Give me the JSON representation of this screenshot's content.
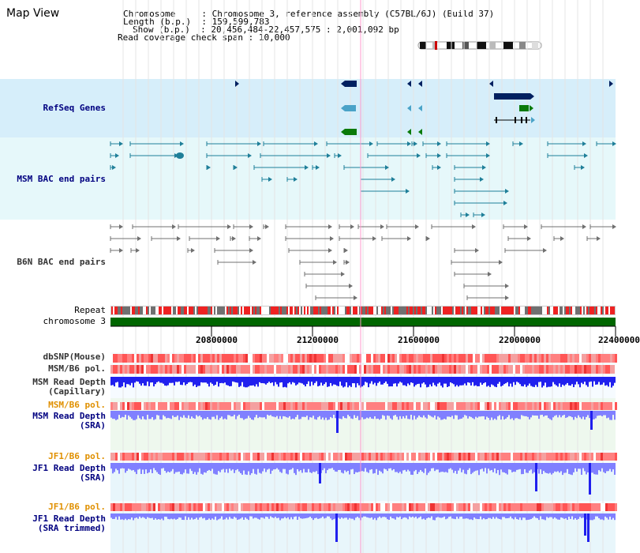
{
  "page": {
    "title": "Map View"
  },
  "info": {
    "chromosome_key": "Chromosome",
    "chromosome_val": "Chromosome 3, reference assembly (C57BL/6J) (Build 37)",
    "length_key": "Length (b.p.)",
    "length_val": "159,599,783",
    "show_key": "Show (b.p.)",
    "show_val": "20,456,484-22,457,575 : 2,001,092 bp",
    "coverage_key": "Read coverage check span",
    "coverage_val": "10,000"
  },
  "tracks": {
    "refseq": "RefSeq Genes",
    "msm_bac": "MSM BAC end pairs",
    "b6n_bac": "B6N BAC end pairs",
    "repeat": "Repeat",
    "chromosome": "chromosome 3",
    "dbsnp": "dbSNP(Mouse)",
    "msm_pol": "MSM/B6 pol.",
    "msm_depth_cap_1": "MSM Read Depth",
    "msm_depth_cap_2": "(Capillary)",
    "msm_pol_2": "MSM/B6 pol.",
    "msm_depth_sra_1": "MSM Read Depth",
    "msm_depth_sra_2": "(SRA)",
    "jf1_pol_1": "JF1/B6 pol.",
    "jf1_depth_sra_1": "JF1 Read Depth",
    "jf1_depth_sra_2": "(SRA)",
    "jf1_pol_2": "JF1/B6 pol.",
    "jf1_depth_trim_1": "JF1 Read Depth",
    "jf1_depth_trim_2": "(SRA trimmed)"
  },
  "axis": {
    "ticks": [
      "20800000",
      "21200000",
      "21600000",
      "22000000",
      "22400000"
    ]
  },
  "colors": {
    "refseq_bg": "#d6eefa",
    "msm_bac_bg": "#e6f8fa",
    "msm_bac_feature": "#1f7f99",
    "b6n_bac_feature": "#707070",
    "gene_navy": "#002060",
    "gene_teal": "#4aa3c8",
    "gene_green": "#0a7a0a",
    "repeat_red": "#ee2222",
    "repeat_gray": "#707070",
    "chromosome_green": "#006600",
    "snp_red": "#ee3333",
    "depth_blue": "#2020ee",
    "depth_light": "#8080ff",
    "label_navy": "#000080",
    "label_orange": "#e09000",
    "label_gray": "#333333"
  }
}
